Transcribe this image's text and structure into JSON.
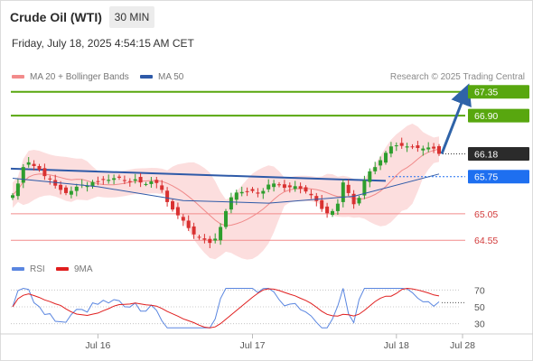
{
  "header": {
    "title": "Crude Oil (WTI)",
    "timeframe": "30 MIN",
    "datetime": "Friday, July 18, 2025 4:54:15 AM CET"
  },
  "legend": {
    "ma20": "MA 20 + Bollinger Bands",
    "ma50": "MA 50",
    "credit": "Research © 2025 Trading Central",
    "rsi": "RSI",
    "rsi_ma": "9MA"
  },
  "colors": {
    "resistance": "#58a70f",
    "support": "#f28b8b",
    "current": "#2b2b2b",
    "pivot": "#1e6ff0",
    "ma50": "#2e5aa8",
    "bollinger": "#fbd3d3",
    "bull": "#2e9e2e",
    "bear": "#d93131",
    "rsi": "#5a86e0",
    "rsi_ma": "#e01e1e",
    "target_arrow": "#2f63a8"
  },
  "chart_data": {
    "type": "line",
    "title": "Crude Oil (WTI)",
    "timeframe": "30 MIN",
    "x_tick_labels": [
      "Jul 16",
      "Jul 17",
      "Jul 18",
      "Jul 28"
    ],
    "ylim": [
      64.23,
      67.55
    ],
    "levels": [
      {
        "role": "resistance",
        "value": 67.35,
        "label": "67.35"
      },
      {
        "role": "resistance",
        "value": 66.9,
        "label": "66.90"
      },
      {
        "role": "current",
        "value": 66.18,
        "label": "66.18"
      },
      {
        "role": "pivot",
        "value": 65.75,
        "label": "65.75"
      },
      {
        "role": "support",
        "value": 65.05,
        "label": "65.05"
      },
      {
        "role": "support",
        "value": 64.55,
        "label": "64.55"
      }
    ],
    "series": [
      {
        "name": "Price (approx. closes)",
        "values": [
          65.4,
          65.62,
          65.93,
          66.02,
          65.95,
          65.88,
          65.76,
          65.7,
          65.58,
          65.5,
          65.44,
          65.48,
          65.56,
          65.6,
          65.58,
          65.65,
          65.66,
          65.7,
          65.69,
          65.72,
          65.73,
          65.68,
          65.66,
          65.7,
          65.64,
          65.61,
          65.66,
          65.63,
          65.5,
          65.27,
          65.13,
          65.02,
          64.92,
          64.78,
          64.66,
          64.6,
          64.56,
          64.5,
          64.58,
          64.8,
          65.1,
          65.36,
          65.45,
          65.46,
          65.47,
          65.48,
          65.43,
          65.48,
          65.6,
          65.62,
          65.59,
          65.54,
          65.55,
          65.57,
          65.52,
          65.47,
          65.4,
          65.29,
          65.14,
          65.06,
          65.1,
          65.24,
          65.64,
          65.44,
          65.23,
          65.35,
          65.68,
          65.85,
          65.93,
          66.06,
          66.2,
          66.32,
          66.34,
          66.33,
          66.32,
          66.31,
          66.29,
          66.28,
          66.3,
          66.28,
          66.18
        ]
      },
      {
        "name": "MA 50",
        "values": [
          65.72,
          65.56,
          65.3,
          65.25,
          65.38,
          65.8
        ]
      }
    ]
  },
  "rsi_chart": {
    "type": "line",
    "ticks": [
      70,
      50,
      30
    ],
    "ylim": [
      20,
      80
    ],
    "rsi_last": 56,
    "ma_last": 63,
    "dotted_level": 55
  }
}
